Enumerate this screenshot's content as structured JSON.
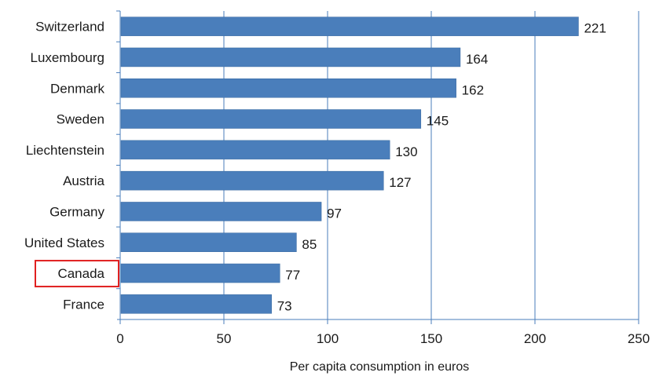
{
  "chart_data": {
    "type": "bar",
    "orientation": "horizontal",
    "categories": [
      "Switzerland",
      "Luxembourg",
      "Denmark",
      "Sweden",
      "Liechtenstein",
      "Austria",
      "Germany",
      "United States",
      "Canada",
      "France"
    ],
    "values": [
      221,
      164,
      162,
      145,
      130,
      127,
      97,
      85,
      77,
      73
    ],
    "data_labels": [
      "221",
      "164",
      "162",
      "145",
      "130",
      "127",
      "97",
      "85",
      "77",
      "73"
    ],
    "title": "",
    "xlabel": "Per capita consumption in euros",
    "ylabel": "",
    "xlim": [
      0,
      250
    ],
    "xticks": [
      0,
      50,
      100,
      150,
      200,
      250
    ],
    "xtick_labels": [
      "0",
      "50",
      "100",
      "150",
      "200",
      "250"
    ],
    "grid": "vertical",
    "legend": "none",
    "highlighted_category": "Canada",
    "colors": {
      "bar": "#4a7ebb",
      "bar_edge": "#3a6aa0",
      "gridline": "#4a7ebb",
      "axis": "#4a7ebb",
      "highlight_box": "#e02020"
    }
  }
}
